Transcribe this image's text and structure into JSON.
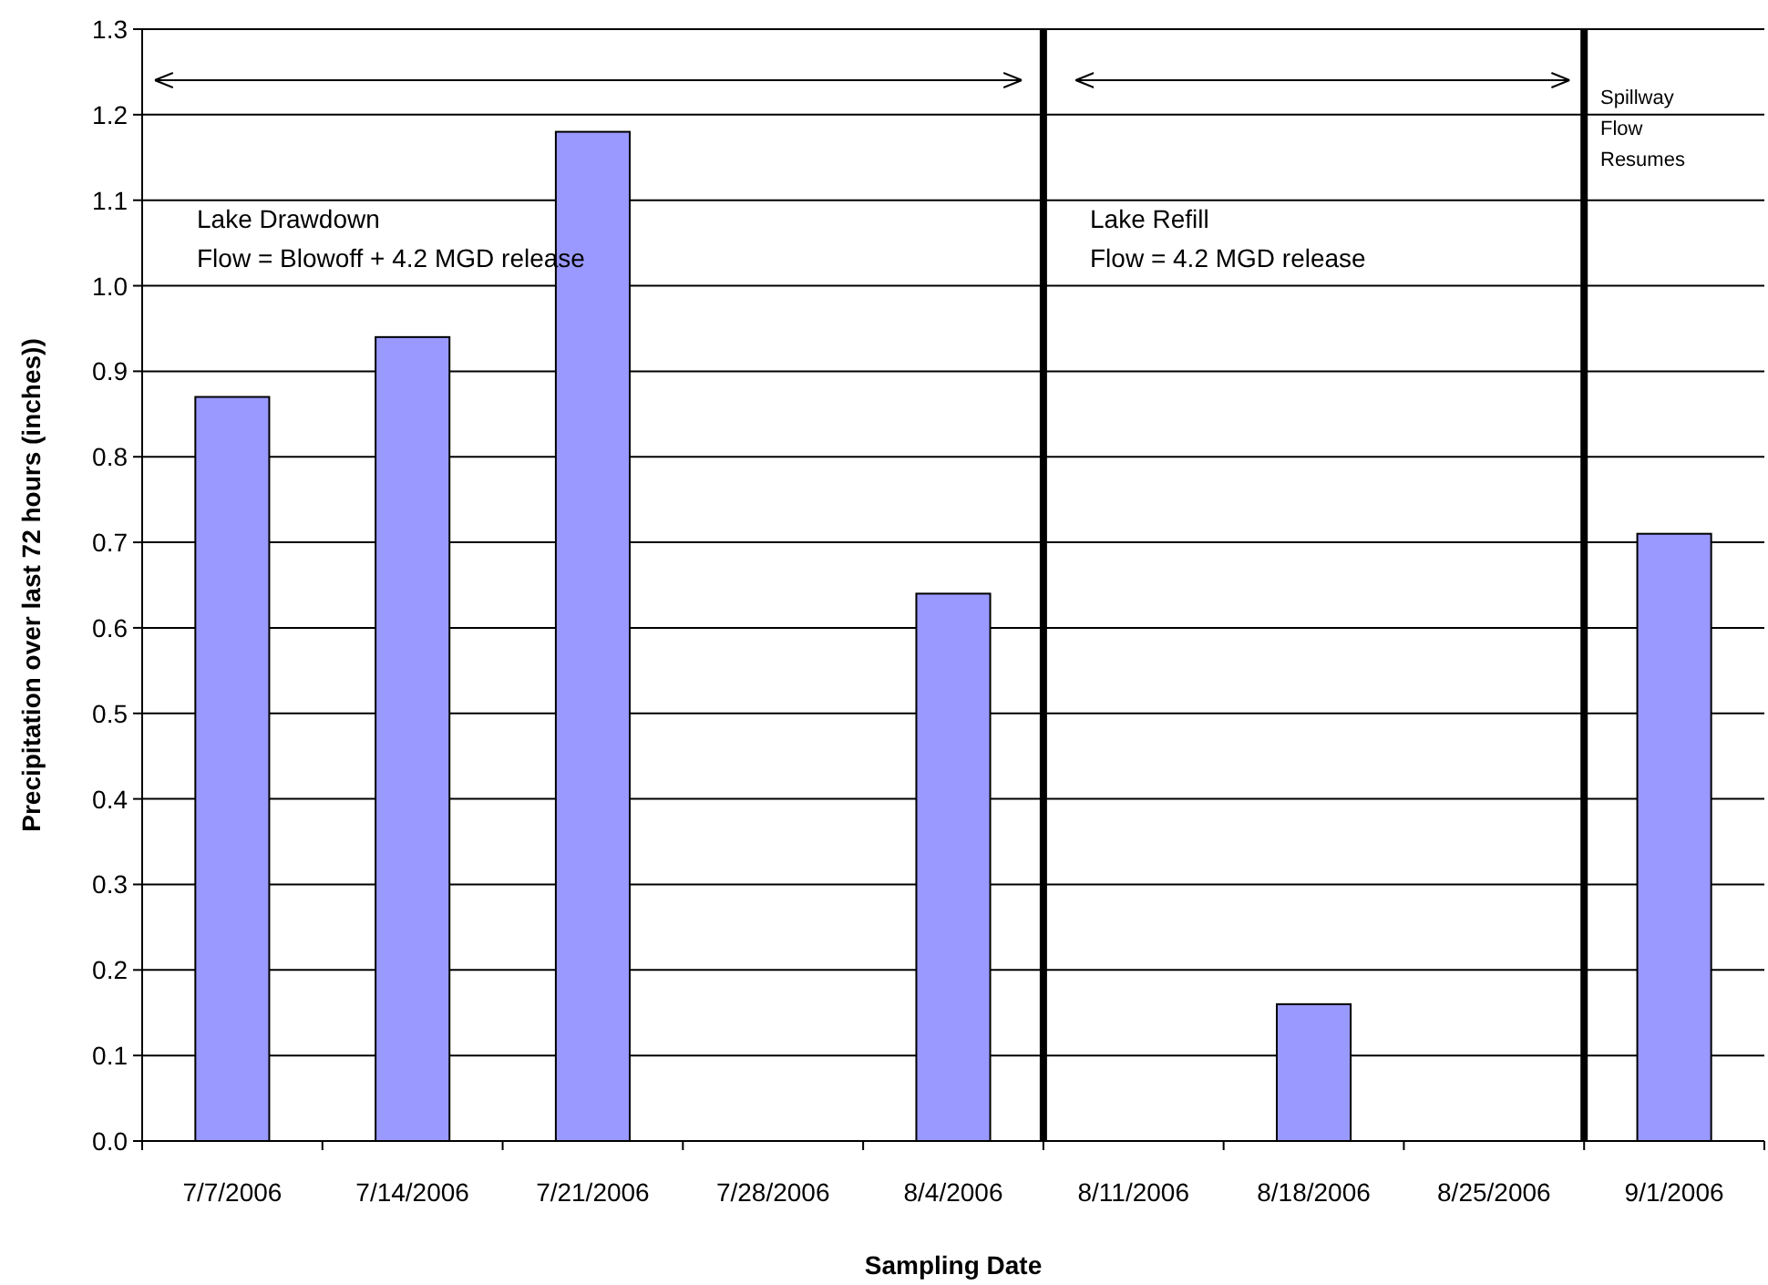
{
  "chart_data": {
    "type": "bar",
    "xlabel": "Sampling Date",
    "ylabel": "Precipitation over last 72 hours (inches))",
    "categories": [
      "7/7/2006",
      "7/14/2006",
      "7/21/2006",
      "7/28/2006",
      "8/4/2006",
      "8/11/2006",
      "8/18/2006",
      "8/25/2006",
      "9/1/2006"
    ],
    "values": [
      0.87,
      0.94,
      1.18,
      0,
      0.64,
      0,
      0.16,
      0,
      0.71
    ],
    "color": "#9999ff",
    "ylim": [
      0,
      1.3
    ],
    "yticks": [
      {
        "value": 0,
        "label": "0.0"
      },
      {
        "value": 0.1,
        "label": "0.1"
      },
      {
        "value": 0.2,
        "label": "0.2"
      },
      {
        "value": 0.3,
        "label": "0.3"
      },
      {
        "value": 0.4,
        "label": "0.4"
      },
      {
        "value": 0.5,
        "label": "0.5"
      },
      {
        "value": 0.6,
        "label": "0.6"
      },
      {
        "value": 0.7,
        "label": "0.7"
      },
      {
        "value": 0.8,
        "label": "0.8"
      },
      {
        "value": 0.9,
        "label": "0.9"
      },
      {
        "value": 1.0,
        "label": "1.0"
      },
      {
        "value": 1.1,
        "label": "1.1"
      },
      {
        "value": 1.2,
        "label": "1.2"
      },
      {
        "value": 1.3,
        "label": "1.3"
      }
    ],
    "grid": "y",
    "annotations": [
      "Lake Drawdown\nFlow = Blowoff + 4.2 MGD release",
      "Lake Refill\nFlow = 4.2 MGD release",
      "Spillway\nFlow\nResumes"
    ]
  }
}
